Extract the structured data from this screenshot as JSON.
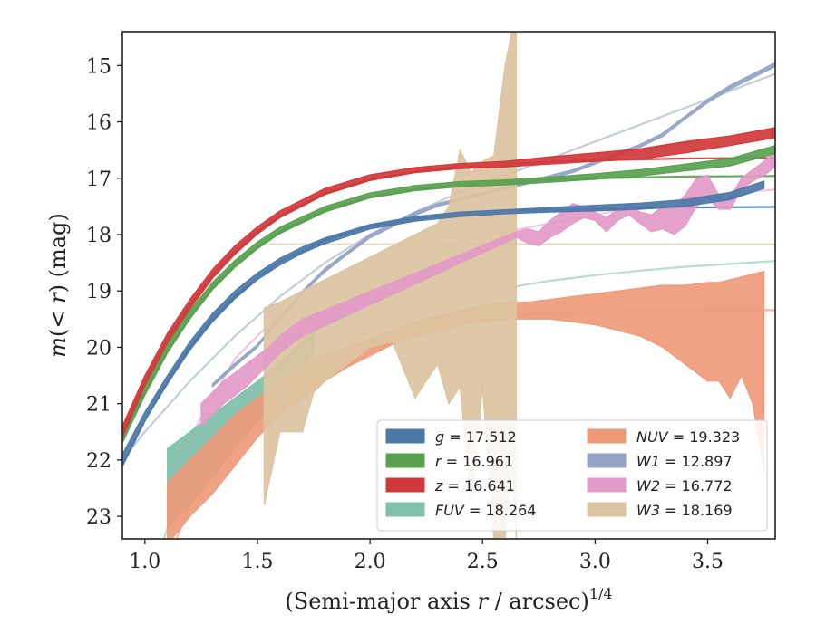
{
  "chart_data": {
    "type": "area",
    "xlabel": "(Semi-major axis r / arcsec)",
    "xlabel_parts": {
      "pre": "(Semi-major axis ",
      "var": "r",
      "post": " / arcsec)",
      "sup": "1/4"
    },
    "ylabel_parts": {
      "var": "m",
      "mid": "(< ",
      "var2": "r",
      "post": ") (mag)"
    },
    "xlim": [
      0.9,
      3.8
    ],
    "ylim": [
      23.4,
      14.4
    ],
    "y_inverted": true,
    "xticks": [
      {
        "v": 1.0,
        "label": "1.0"
      },
      {
        "v": 1.5,
        "label": "1.5"
      },
      {
        "v": 2.0,
        "label": "2.0"
      },
      {
        "v": 2.5,
        "label": "2.5"
      },
      {
        "v": 3.0,
        "label": "3.0"
      },
      {
        "v": 3.5,
        "label": "3.5"
      }
    ],
    "yticks": [
      {
        "v": 15,
        "label": "15"
      },
      {
        "v": 16,
        "label": "16"
      },
      {
        "v": 17,
        "label": "17"
      },
      {
        "v": 18,
        "label": "18"
      },
      {
        "v": 19,
        "label": "19"
      },
      {
        "v": 20,
        "label": "20"
      },
      {
        "v": 21,
        "label": "21"
      },
      {
        "v": 22,
        "label": "22"
      },
      {
        "v": 23,
        "label": "23"
      }
    ],
    "grid": false,
    "legend_position": "lower-right",
    "legend_columns": 2,
    "series": [
      {
        "key": "W1",
        "legend": "W1 = 12.897",
        "legend_var": "W1",
        "legend_val": "= 12.897",
        "color": "#94a3c4",
        "fit_asymptote": 12.897,
        "fit_alpha": 0.55,
        "fit": [
          [
            0.9,
            22.0
          ],
          [
            1.0,
            21.5
          ],
          [
            1.2,
            20.6
          ],
          [
            1.4,
            19.8
          ],
          [
            1.6,
            19.1
          ],
          [
            1.8,
            18.5
          ],
          [
            2.0,
            18.0
          ],
          [
            2.2,
            17.6
          ],
          [
            2.4,
            17.25
          ],
          [
            2.6,
            16.95
          ],
          [
            2.8,
            16.65
          ],
          [
            3.0,
            16.35
          ],
          [
            3.2,
            16.05
          ],
          [
            3.4,
            15.75
          ],
          [
            3.6,
            15.45
          ],
          [
            3.8,
            15.15
          ]
        ],
        "x": [
          1.3,
          1.4,
          1.5,
          1.6,
          1.7,
          1.8,
          1.9,
          2.0,
          2.1,
          2.2,
          2.3,
          2.4,
          2.5,
          2.6,
          2.7,
          2.8,
          2.9,
          3.0,
          3.1,
          3.2,
          3.3,
          3.4,
          3.5,
          3.6,
          3.7,
          3.8
        ],
        "lo": [
          20.65,
          20.28,
          19.95,
          19.45,
          19.0,
          18.6,
          18.3,
          18.0,
          17.8,
          17.6,
          17.45,
          17.35,
          17.25,
          17.15,
          17.05,
          16.95,
          16.85,
          16.7,
          16.55,
          16.4,
          16.2,
          15.9,
          15.6,
          15.35,
          15.15,
          14.95
        ],
        "hi": [
          20.7,
          20.34,
          20.0,
          19.5,
          19.05,
          18.66,
          18.35,
          18.06,
          17.86,
          17.66,
          17.5,
          17.4,
          17.3,
          17.2,
          17.1,
          17.0,
          16.9,
          16.75,
          16.6,
          16.45,
          16.26,
          15.95,
          15.66,
          15.42,
          15.22,
          15.02
        ]
      },
      {
        "key": "FUV",
        "legend": "FUV = 18.264",
        "legend_var": "FUV",
        "legend_val": "= 18.264",
        "color": "#7fbfab",
        "fit_asymptote": 18.264,
        "fit_alpha": 0.55,
        "fit": [
          [
            0.9,
            25.5
          ],
          [
            1.0,
            24.5
          ],
          [
            1.1,
            23.2
          ],
          [
            1.2,
            22.3
          ],
          [
            1.4,
            21.3
          ],
          [
            1.6,
            20.6
          ],
          [
            1.8,
            20.1
          ],
          [
            2.0,
            19.7
          ],
          [
            2.2,
            19.4
          ],
          [
            2.4,
            19.15
          ],
          [
            2.6,
            18.95
          ],
          [
            2.8,
            18.82
          ],
          [
            3.0,
            18.72
          ],
          [
            3.2,
            18.64
          ],
          [
            3.4,
            18.57
          ],
          [
            3.6,
            18.52
          ],
          [
            3.8,
            18.47
          ]
        ],
        "x": [
          1.1,
          1.2,
          1.3,
          1.4,
          1.5,
          1.55,
          1.6,
          1.65,
          1.7,
          1.75
        ],
        "lo": [
          21.8,
          21.5,
          21.2,
          20.9,
          20.6,
          20.45,
          20.3,
          20.1,
          19.9,
          19.7
        ],
        "hi": [
          23.2,
          22.8,
          22.3,
          21.8,
          21.3,
          21.1,
          20.85,
          20.6,
          20.35,
          20.1
        ]
      },
      {
        "key": "NUV",
        "legend": "NUV = 19.323",
        "legend_var": "NUV",
        "legend_val": "= 19.323",
        "color": "#ee9a7a",
        "fit_asymptote": 19.323,
        "fit_alpha": 0.7,
        "fit": [
          [
            1.0,
            25.0
          ],
          [
            1.1,
            23.8
          ],
          [
            1.2,
            22.8
          ],
          [
            1.4,
            21.7
          ],
          [
            1.6,
            20.9
          ],
          [
            1.8,
            20.35
          ],
          [
            2.0,
            20.0
          ],
          [
            2.2,
            19.7
          ],
          [
            2.4,
            19.55
          ],
          [
            2.6,
            19.45
          ],
          [
            2.8,
            19.4
          ],
          [
            3.0,
            19.37
          ],
          [
            3.4,
            19.35
          ],
          [
            3.8,
            19.34
          ]
        ],
        "x": [
          1.1,
          1.2,
          1.3,
          1.4,
          1.5,
          1.6,
          1.7,
          1.8,
          1.9,
          2.0,
          2.1,
          2.2,
          2.3,
          2.4,
          2.5,
          2.6,
          2.7,
          2.8,
          2.9,
          3.0,
          3.1,
          3.2,
          3.3,
          3.4,
          3.5,
          3.55,
          3.6,
          3.65,
          3.7,
          3.75
        ],
        "lo": [
          22.4,
          22.0,
          21.6,
          21.2,
          20.9,
          20.6,
          20.35,
          20.15,
          20.0,
          19.85,
          19.7,
          19.55,
          19.45,
          19.35,
          19.25,
          19.2,
          19.2,
          19.15,
          19.1,
          19.05,
          19.0,
          18.95,
          18.9,
          18.9,
          18.85,
          18.85,
          18.8,
          18.75,
          18.7,
          18.65
        ],
        "hi": [
          23.5,
          23.0,
          22.6,
          22.1,
          21.6,
          21.2,
          20.9,
          20.6,
          20.35,
          20.15,
          19.95,
          19.8,
          19.7,
          19.6,
          19.55,
          19.5,
          19.5,
          19.5,
          19.55,
          19.6,
          19.7,
          19.8,
          20.0,
          20.3,
          20.6,
          20.6,
          20.9,
          20.5,
          21.0,
          22.2
        ]
      },
      {
        "key": "W3",
        "legend": "W3 = 18.169",
        "legend_var": "W3",
        "legend_val": "= 18.169",
        "color": "#dcc3a0",
        "fit_asymptote": 18.169,
        "fit_alpha": 0.6,
        "fit": [
          [
            1.55,
            18.17
          ],
          [
            3.8,
            18.17
          ]
        ],
        "x": [
          1.53,
          1.6,
          1.7,
          1.75,
          1.8,
          1.9,
          2.0,
          2.1,
          2.2,
          2.3,
          2.35,
          2.4,
          2.45,
          2.5,
          2.55,
          2.6,
          2.63,
          2.65
        ],
        "lo": [
          19.3,
          19.2,
          19.0,
          18.9,
          18.8,
          18.6,
          18.4,
          18.2,
          18.0,
          17.8,
          17.5,
          16.5,
          16.9,
          16.7,
          16.6,
          15.0,
          14.4,
          14.4
        ],
        "hi": [
          22.8,
          21.5,
          21.5,
          20.8,
          20.6,
          20.3,
          20.0,
          19.9,
          20.9,
          20.3,
          21.0,
          20.7,
          22.8,
          20.7,
          23.4,
          23.4,
          22.0,
          23.4
        ]
      },
      {
        "key": "W2",
        "legend": "W2 = 16.772",
        "legend_var": "W2",
        "legend_val": "= 16.772",
        "color": "#e29ac8",
        "fit_asymptote": 16.772,
        "fit_alpha": 0.55,
        "fit": [
          [
            1.2,
            21.6
          ],
          [
            1.4,
            20.2
          ],
          [
            1.6,
            19.4
          ],
          [
            1.8,
            18.9
          ],
          [
            2.0,
            18.6
          ],
          [
            2.2,
            18.35
          ],
          [
            2.4,
            18.15
          ],
          [
            2.6,
            17.95
          ],
          [
            2.8,
            17.8
          ],
          [
            3.0,
            17.65
          ],
          [
            3.2,
            17.5
          ],
          [
            3.4,
            17.38
          ],
          [
            3.6,
            17.28
          ],
          [
            3.8,
            17.2
          ]
        ],
        "x": [
          1.25,
          1.35,
          1.45,
          1.55,
          1.6,
          1.7,
          2.65,
          2.7,
          2.75,
          2.8,
          2.85,
          2.9,
          2.95,
          3.0,
          3.05,
          3.1,
          3.15,
          3.2,
          3.25,
          3.3,
          3.35,
          3.4,
          3.45,
          3.5,
          3.55,
          3.6,
          3.65,
          3.7,
          3.75,
          3.8
        ],
        "lo": [
          21.0,
          20.6,
          20.3,
          20.0,
          19.8,
          19.5,
          17.95,
          17.9,
          17.95,
          17.75,
          17.6,
          17.45,
          17.5,
          17.6,
          17.7,
          17.55,
          17.45,
          17.6,
          17.65,
          17.5,
          17.5,
          17.3,
          17.0,
          16.95,
          17.3,
          17.35,
          17.0,
          16.85,
          16.7,
          16.5
        ],
        "hi": [
          21.4,
          21.0,
          20.7,
          20.3,
          20.1,
          19.8,
          18.05,
          18.15,
          18.2,
          18.05,
          17.95,
          17.8,
          17.7,
          17.75,
          17.95,
          17.75,
          17.65,
          17.8,
          17.95,
          17.9,
          18.0,
          17.85,
          17.5,
          17.35,
          17.55,
          17.55,
          17.2,
          17.05,
          16.95,
          16.8
        ]
      },
      {
        "key": "g",
        "legend": "g = 17.512",
        "legend_var": "g",
        "legend_val": "= 17.512",
        "color": "#4c78a8",
        "fit_asymptote": 17.512,
        "fit_alpha": 0.9,
        "fit": [
          [
            0.9,
            22.1
          ],
          [
            1.0,
            21.3
          ],
          [
            1.1,
            20.6
          ],
          [
            1.2,
            20.0
          ],
          [
            1.3,
            19.5
          ],
          [
            1.4,
            19.1
          ],
          [
            1.5,
            18.75
          ],
          [
            1.6,
            18.48
          ],
          [
            1.8,
            18.1
          ],
          [
            2.0,
            17.85
          ],
          [
            2.2,
            17.72
          ],
          [
            2.4,
            17.64
          ],
          [
            2.6,
            17.59
          ],
          [
            2.8,
            17.56
          ],
          [
            3.0,
            17.54
          ],
          [
            3.4,
            17.52
          ],
          [
            3.8,
            17.51
          ]
        ],
        "x": [
          0.9,
          1.0,
          1.1,
          1.2,
          1.3,
          1.4,
          1.5,
          1.6,
          1.7,
          1.8,
          1.9,
          2.0,
          2.2,
          2.4,
          2.6,
          2.8,
          3.0,
          3.2,
          3.4,
          3.6,
          3.75
        ],
        "lo": [
          21.9,
          21.15,
          20.5,
          19.9,
          19.4,
          19.0,
          18.68,
          18.42,
          18.22,
          18.06,
          17.94,
          17.82,
          17.68,
          17.6,
          17.56,
          17.52,
          17.48,
          17.44,
          17.38,
          17.25,
          17.05
        ],
        "hi": [
          22.1,
          21.3,
          20.65,
          20.05,
          19.55,
          19.14,
          18.8,
          18.54,
          18.33,
          18.16,
          18.03,
          17.9,
          17.76,
          17.68,
          17.63,
          17.6,
          17.58,
          17.55,
          17.5,
          17.38,
          17.18
        ]
      },
      {
        "key": "r",
        "legend": "r = 16.961",
        "legend_var": "r",
        "legend_val": "= 16.961",
        "color": "#59a14f",
        "fit_asymptote": 16.961,
        "fit_alpha": 0.9,
        "fit": [
          [
            0.9,
            21.6
          ],
          [
            1.0,
            20.8
          ],
          [
            1.1,
            20.05
          ],
          [
            1.2,
            19.45
          ],
          [
            1.3,
            18.95
          ],
          [
            1.4,
            18.55
          ],
          [
            1.5,
            18.22
          ],
          [
            1.6,
            17.95
          ],
          [
            1.8,
            17.57
          ],
          [
            2.0,
            17.33
          ],
          [
            2.2,
            17.2
          ],
          [
            2.4,
            17.12
          ],
          [
            2.6,
            17.07
          ],
          [
            2.8,
            17.03
          ],
          [
            3.0,
            17.0
          ],
          [
            3.4,
            16.97
          ],
          [
            3.8,
            16.96
          ]
        ],
        "x": [
          0.9,
          1.0,
          1.1,
          1.2,
          1.3,
          1.4,
          1.5,
          1.6,
          1.8,
          2.0,
          2.2,
          2.4,
          2.6,
          2.8,
          3.0,
          3.2,
          3.4,
          3.6,
          3.8
        ],
        "lo": [
          21.5,
          20.7,
          19.95,
          19.35,
          18.85,
          18.46,
          18.13,
          17.87,
          17.5,
          17.26,
          17.13,
          17.06,
          17.03,
          16.98,
          16.92,
          16.85,
          16.75,
          16.65,
          16.42
        ],
        "hi": [
          21.7,
          20.85,
          20.1,
          19.5,
          18.98,
          18.58,
          18.25,
          17.98,
          17.6,
          17.35,
          17.22,
          17.15,
          17.12,
          17.07,
          17.02,
          16.96,
          16.87,
          16.78,
          16.56
        ]
      },
      {
        "key": "z",
        "legend": "z = 16.641",
        "legend_var": "z",
        "legend_val": "= 16.641",
        "color": "#d1383b",
        "fit_asymptote": 16.641,
        "fit_alpha": 0.9,
        "fit": [
          [
            0.9,
            21.5
          ],
          [
            1.0,
            20.6
          ],
          [
            1.1,
            19.85
          ],
          [
            1.2,
            19.25
          ],
          [
            1.3,
            18.72
          ],
          [
            1.4,
            18.3
          ],
          [
            1.5,
            17.95
          ],
          [
            1.6,
            17.67
          ],
          [
            1.8,
            17.27
          ],
          [
            2.0,
            17.02
          ],
          [
            2.2,
            16.88
          ],
          [
            2.4,
            16.8
          ],
          [
            2.6,
            16.75
          ],
          [
            2.8,
            16.71
          ],
          [
            3.0,
            16.68
          ],
          [
            3.4,
            16.65
          ],
          [
            3.8,
            16.64
          ]
        ],
        "x": [
          0.9,
          1.0,
          1.1,
          1.2,
          1.3,
          1.4,
          1.5,
          1.6,
          1.8,
          2.0,
          2.2,
          2.4,
          2.6,
          2.8,
          3.0,
          3.2,
          3.4,
          3.6,
          3.8
        ],
        "lo": [
          21.4,
          20.5,
          19.75,
          19.15,
          18.62,
          18.2,
          17.86,
          17.58,
          17.18,
          16.94,
          16.81,
          16.74,
          16.7,
          16.62,
          16.55,
          16.48,
          16.35,
          16.25,
          16.1
        ],
        "hi": [
          21.6,
          20.68,
          19.92,
          19.32,
          18.78,
          18.35,
          17.99,
          17.7,
          17.29,
          17.04,
          16.9,
          16.83,
          16.8,
          16.75,
          16.7,
          16.66,
          16.55,
          16.42,
          16.28
        ]
      }
    ]
  }
}
